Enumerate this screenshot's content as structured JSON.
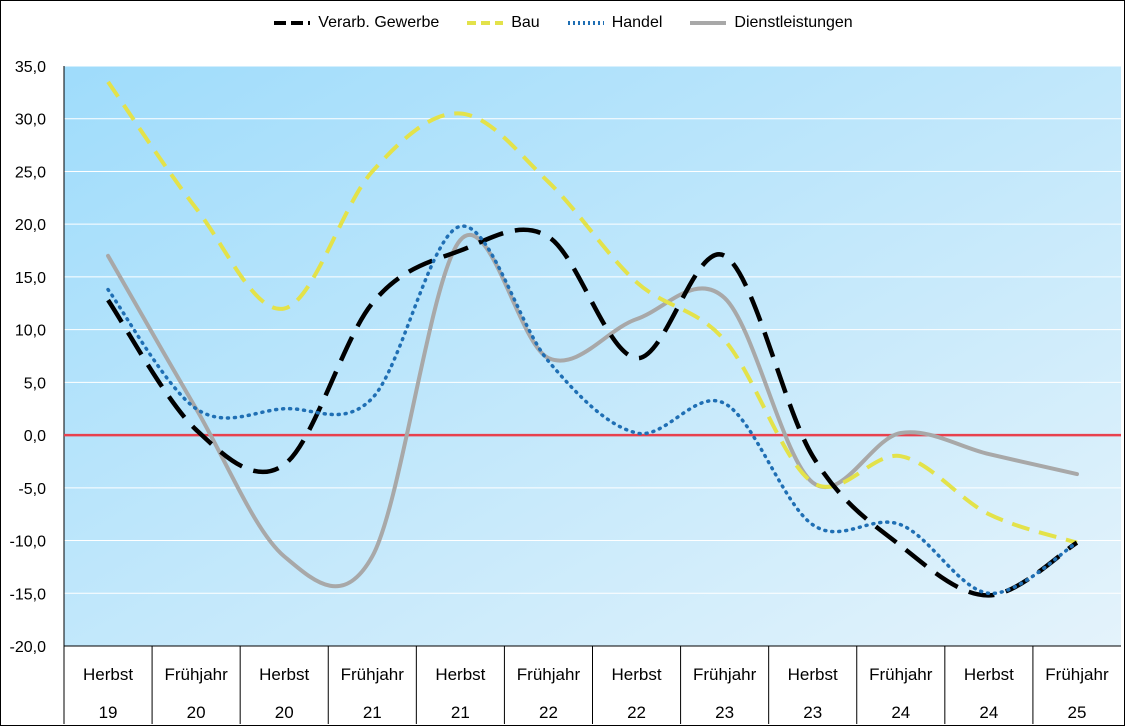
{
  "chart_data": {
    "type": "line",
    "title": "",
    "xlabel": "",
    "ylabel": "",
    "ylim": [
      -20,
      35
    ],
    "yticks": [
      "35,0",
      "30,0",
      "25,0",
      "20,0",
      "15,0",
      "10,0",
      "5,0",
      "0,0",
      "-5,0",
      "-10,0",
      "-15,0",
      "-20,0"
    ],
    "ytick_values": [
      35,
      30,
      25,
      20,
      15,
      10,
      5,
      0,
      -5,
      -10,
      -15,
      -20
    ],
    "categories": [
      {
        "season": "Herbst",
        "year": "19"
      },
      {
        "season": "Frühjahr",
        "year": "20"
      },
      {
        "season": "Herbst",
        "year": "20"
      },
      {
        "season": "Frühjahr",
        "year": "21"
      },
      {
        "season": "Herbst",
        "year": "21"
      },
      {
        "season": "Frühjahr",
        "year": "22"
      },
      {
        "season": "Herbst",
        "year": "22"
      },
      {
        "season": "Frühjahr",
        "year": "23"
      },
      {
        "season": "Herbst",
        "year": "23"
      },
      {
        "season": "Frühjahr",
        "year": "24"
      },
      {
        "season": "Herbst",
        "year": "24"
      },
      {
        "season": "Frühjahr",
        "year": "25"
      }
    ],
    "zero_line": {
      "value": 0,
      "color": "#e8414e"
    },
    "legend_position": "top-center",
    "series": [
      {
        "name": "Verarb. Gewerbe",
        "color": "#000000",
        "style": "dashed",
        "values": [
          12.8,
          0.5,
          -2.8,
          12.5,
          17.5,
          18.8,
          7.3,
          17.0,
          -2.0,
          -10.5,
          -15.2,
          -10.2
        ]
      },
      {
        "name": "Bau",
        "color": "#e3e24a",
        "style": "dashed",
        "values": [
          33.5,
          21.5,
          12.0,
          25.0,
          30.5,
          24.0,
          14.5,
          9.0,
          -4.5,
          -2.0,
          -7.5,
          -10.2
        ]
      },
      {
        "name": "Handel",
        "color": "#1f6fb4",
        "style": "dotted",
        "values": [
          13.8,
          2.5,
          2.5,
          3.5,
          19.8,
          7.0,
          0.2,
          3.0,
          -8.5,
          -8.5,
          -15.0,
          -10.2
        ]
      },
      {
        "name": "Dienstleistungen",
        "color": "#a8a8a8",
        "style": "solid",
        "values": [
          17.0,
          2.5,
          -11.5,
          -11.5,
          18.5,
          7.3,
          11.0,
          13.0,
          -4.5,
          0.2,
          -1.8,
          -3.7
        ]
      }
    ]
  }
}
